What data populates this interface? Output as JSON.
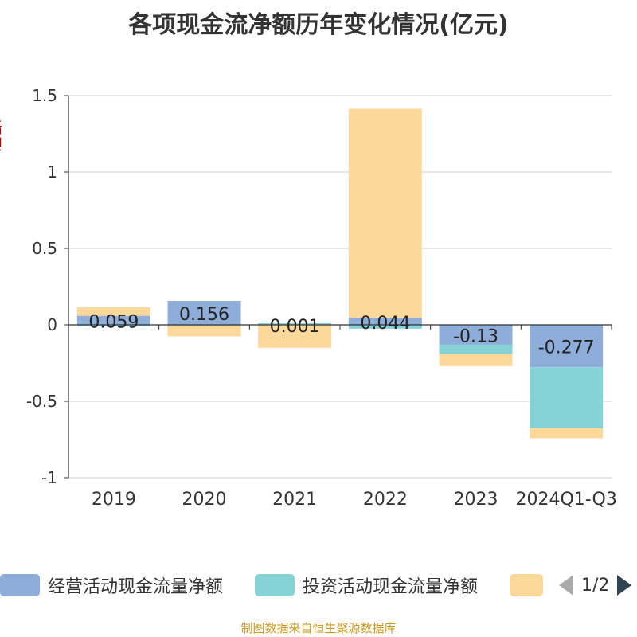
{
  "title": "各项现金流净额历年变化情况(亿元)",
  "unit_label": "(亿元)",
  "source": "制图数据来自恒生聚源数据库",
  "legend": {
    "items": [
      {
        "label": "经营活动现金流量净额",
        "color": "#8eadd9"
      },
      {
        "label": "投资活动现金流量净额",
        "color": "#86d3d6"
      },
      {
        "label": "",
        "color": "#fdd89b"
      }
    ],
    "page_text": "1/2"
  },
  "chart_data": {
    "type": "bar",
    "stacked": true,
    "categories": [
      "2019",
      "2020",
      "2021",
      "2022",
      "2023",
      "2024Q1-Q3"
    ],
    "ylim": [
      -1,
      1.5
    ],
    "yticks": [
      -1,
      -0.5,
      0,
      0.5,
      1,
      1.5
    ],
    "grid": true,
    "series": [
      {
        "name": "经营活动现金流量净额",
        "color": "#8eadd9",
        "values": [
          0.059,
          0.156,
          0.001,
          0.044,
          -0.13,
          -0.277
        ],
        "labels": [
          "0.059",
          "0.156",
          "0.001",
          "0.044",
          "-0.13",
          "-0.277"
        ]
      },
      {
        "name": "投资活动现金流量净额",
        "color": "#86d3d6",
        "values": [
          -0.01,
          -0.005,
          0.01,
          -0.025,
          -0.06,
          -0.4
        ]
      },
      {
        "color": "#fdd89b",
        "values": [
          0.055,
          -0.07,
          -0.15,
          1.37,
          -0.08,
          -0.065
        ]
      }
    ]
  }
}
